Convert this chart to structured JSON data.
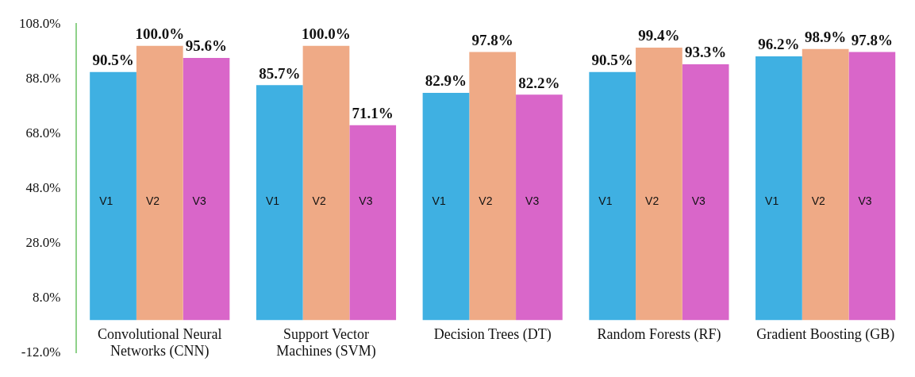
{
  "chart_data": {
    "type": "bar",
    "categories": [
      "Convolutional Neural Networks (CNN)",
      "Support Vector Machines (SVM)",
      "Decision Trees (DT)",
      "Random Forests (RF)",
      "Gradient Boosting (GB)"
    ],
    "series": [
      {
        "name": "V1",
        "color": "#3fb0e2",
        "values": [
          90.5,
          85.7,
          82.9,
          90.5,
          96.2
        ],
        "value_labels": [
          "90.5%",
          "85.7%",
          "82.9%",
          "90.5%",
          "96.2%"
        ]
      },
      {
        "name": "V2",
        "color": "#efaa86",
        "values": [
          100.0,
          100.0,
          97.8,
          99.4,
          98.9
        ],
        "value_labels": [
          "100.0%",
          "100.0%",
          "97.8%",
          "99.4%",
          "98.9%"
        ]
      },
      {
        "name": "V3",
        "color": "#d966c9",
        "values": [
          95.6,
          71.1,
          82.2,
          93.3,
          97.8
        ],
        "value_labels": [
          "95.6%",
          "71.1%",
          "82.2%",
          "93.3%",
          "97.8%"
        ]
      }
    ],
    "ylim": [
      -12,
      108
    ],
    "yticks": [
      {
        "value": -12,
        "label": "-12.0%"
      },
      {
        "value": 8,
        "label": "8.0%"
      },
      {
        "value": 28,
        "label": "28.0%"
      },
      {
        "value": 48,
        "label": "48.0%"
      },
      {
        "value": 68,
        "label": "68.0%"
      },
      {
        "value": 88,
        "label": "88.0%"
      },
      {
        "value": 108,
        "label": "108.0%"
      }
    ],
    "grid": false,
    "legend": false
  }
}
